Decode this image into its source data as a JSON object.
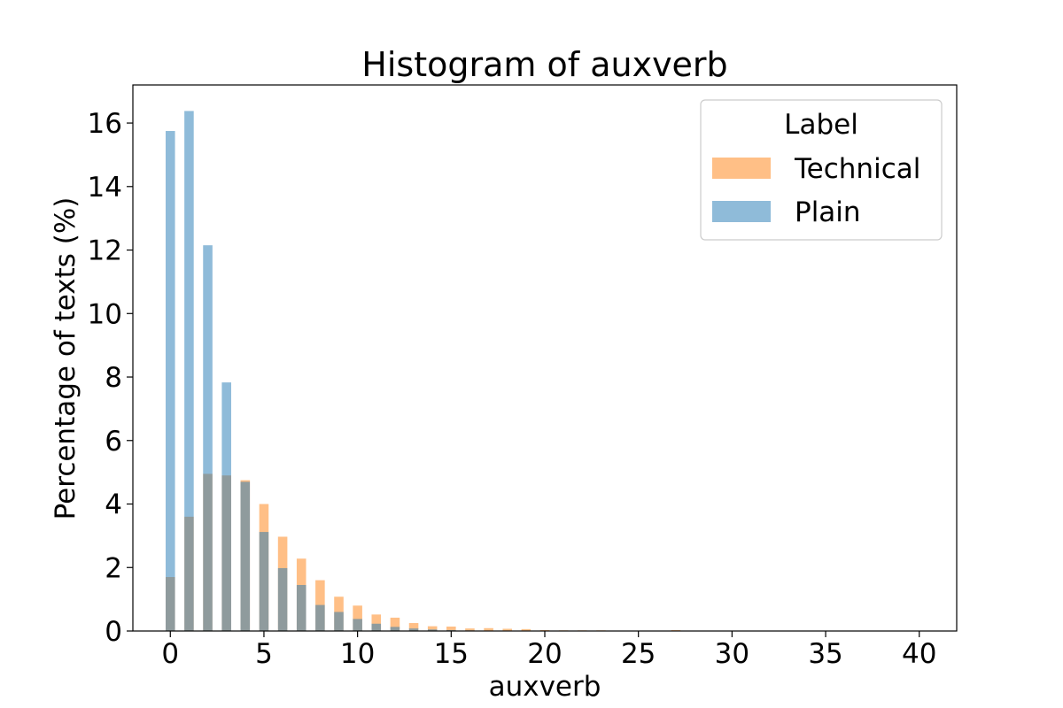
{
  "chart_data": {
    "type": "bar",
    "title": "Histogram of auxverb",
    "xlabel": "auxverb",
    "ylabel": "Percentage of texts (%)",
    "xlim": [
      -2,
      42
    ],
    "ylim": [
      0,
      17.2
    ],
    "xticks": [
      0,
      5,
      10,
      15,
      20,
      25,
      30,
      35,
      40
    ],
    "yticks": [
      0,
      2,
      4,
      6,
      8,
      10,
      12,
      14,
      16
    ],
    "bar_width": 0.5,
    "legend": {
      "title": "Label",
      "position": "top-right",
      "entries": [
        "Technical",
        "Plain"
      ]
    },
    "series": [
      {
        "name": "Technical",
        "color": "#ff7f0e",
        "opacity": 0.5,
        "x": [
          0,
          1,
          2,
          3,
          4,
          5,
          6,
          7,
          8,
          9,
          10,
          11,
          12,
          13,
          14,
          15,
          16,
          17,
          18,
          19,
          20,
          21,
          22,
          23,
          27
        ],
        "values": [
          1.7,
          3.6,
          4.95,
          4.9,
          4.75,
          4.0,
          2.97,
          2.28,
          1.6,
          1.08,
          0.8,
          0.52,
          0.42,
          0.25,
          0.15,
          0.14,
          0.08,
          0.09,
          0.07,
          0.06,
          0.03,
          0.02,
          0.02,
          0.02,
          0.03
        ]
      },
      {
        "name": "Plain",
        "color": "#1f77b4",
        "opacity": 0.5,
        "x": [
          0,
          1,
          2,
          3,
          4,
          5,
          6,
          7,
          8,
          9,
          10,
          11,
          12,
          13,
          14,
          15,
          16
        ],
        "values": [
          15.75,
          16.38,
          12.15,
          7.83,
          4.7,
          3.12,
          1.98,
          1.45,
          0.82,
          0.6,
          0.38,
          0.23,
          0.13,
          0.08,
          0.05,
          0.03,
          0.02
        ]
      }
    ]
  }
}
